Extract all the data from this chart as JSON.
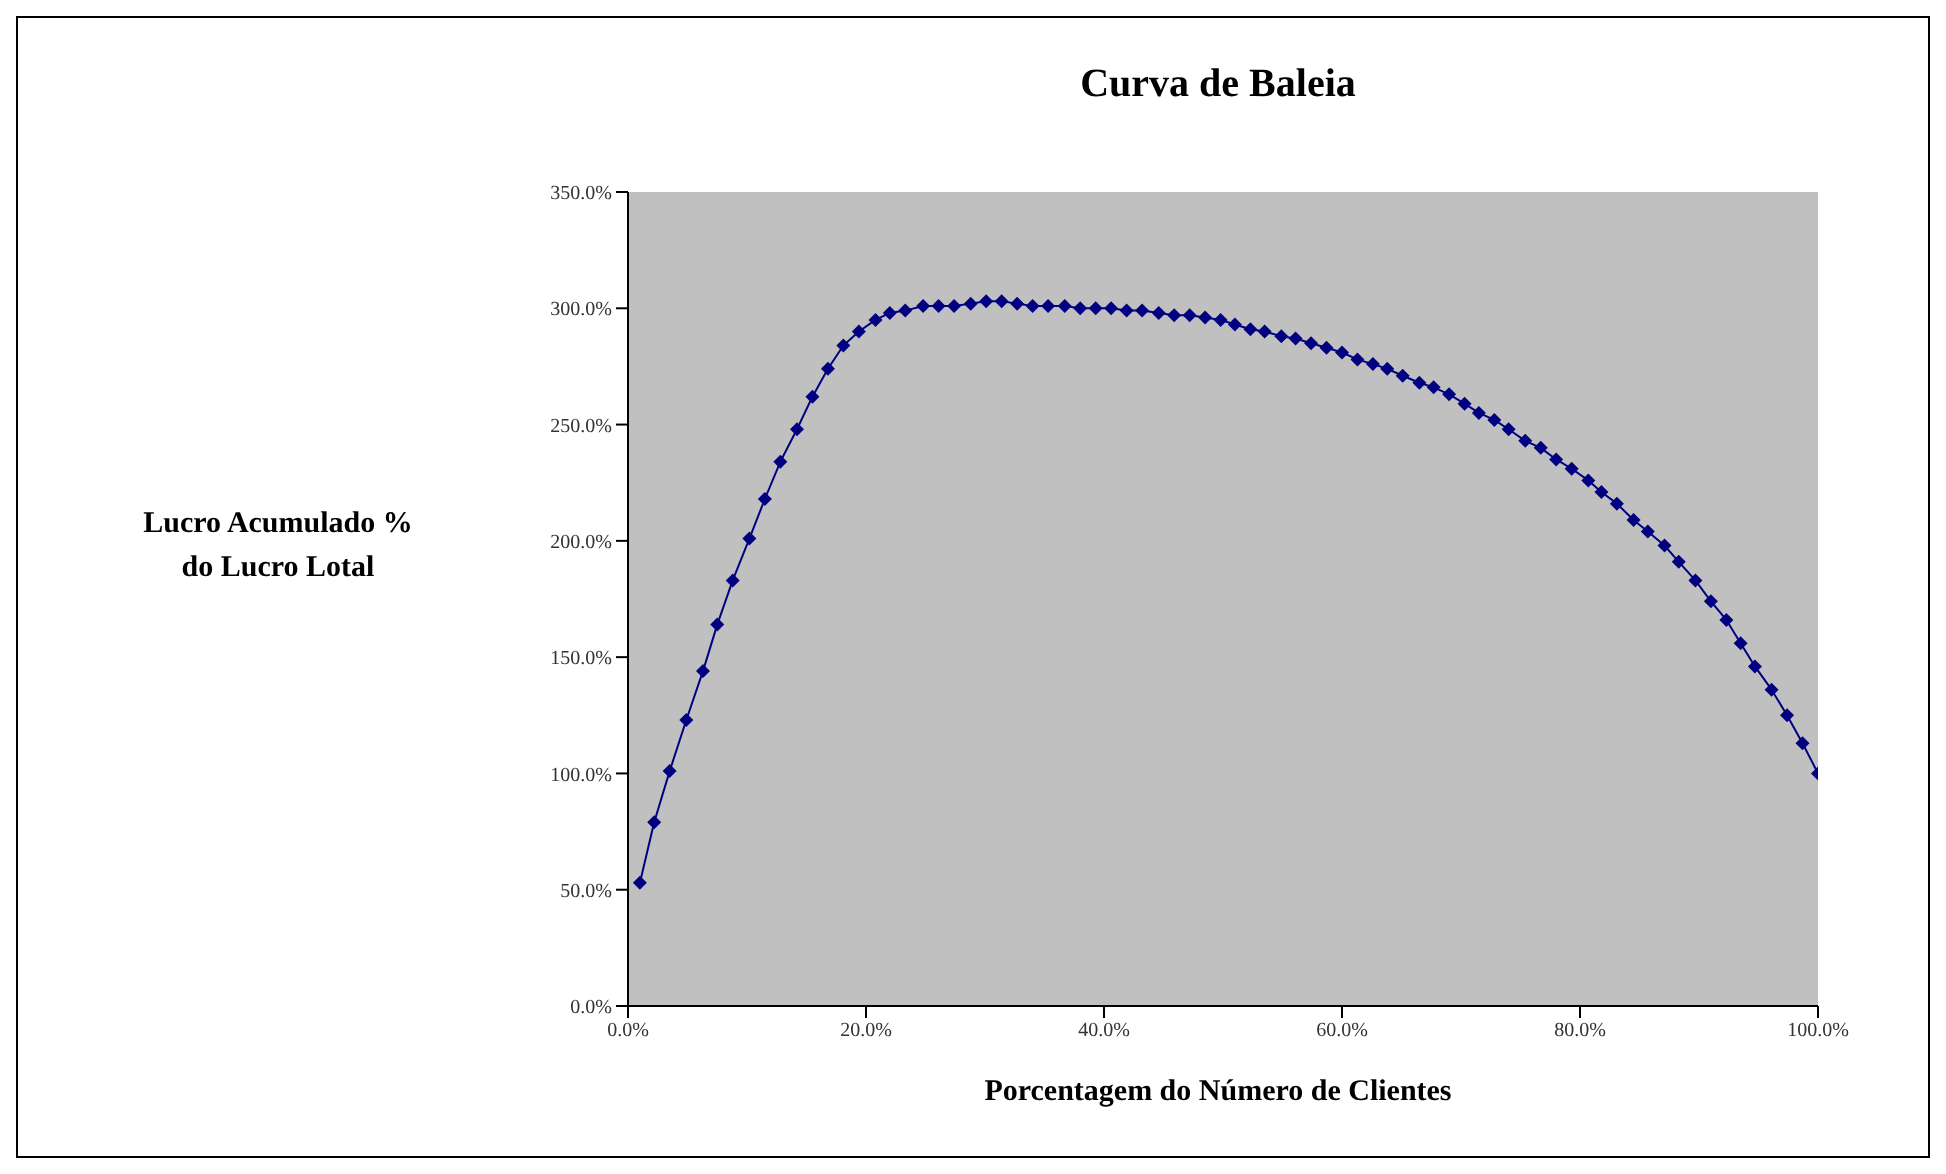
{
  "chart_data": {
    "type": "line",
    "title": "Curva de Baleia",
    "xlabel": "Porcentagem do Número de Clientes",
    "ylabel": "Lucro Acumulado %\ndo Lucro Lotal",
    "x": [
      1.0,
      2.2,
      3.5,
      4.9,
      6.3,
      7.5,
      8.8,
      10.2,
      11.5,
      12.8,
      14.2,
      15.5,
      16.8,
      18.1,
      19.4,
      20.8,
      22.0,
      23.3,
      24.8,
      26.1,
      27.4,
      28.8,
      30.1,
      31.4,
      32.7,
      34.0,
      35.3,
      36.7,
      38.0,
      39.3,
      40.6,
      41.9,
      43.2,
      44.6,
      45.9,
      47.2,
      48.5,
      49.8,
      51.0,
      52.3,
      53.5,
      54.9,
      56.1,
      57.4,
      58.7,
      60.0,
      61.3,
      62.6,
      63.8,
      65.1,
      66.5,
      67.7,
      69.0,
      70.3,
      71.5,
      72.8,
      74.0,
      75.4,
      76.7,
      78.0,
      79.3,
      80.7,
      81.8,
      83.1,
      84.5,
      85.7,
      87.1,
      88.3,
      89.7,
      91.0,
      92.3,
      93.5,
      94.7,
      96.1,
      97.4,
      98.7,
      100.0
    ],
    "series": [
      {
        "color": "#000080",
        "values": [
          53,
          79,
          101,
          123,
          144,
          164,
          183,
          201,
          218,
          234,
          248,
          262,
          274,
          284,
          290,
          295,
          298,
          299,
          301,
          301,
          301,
          302,
          303,
          303,
          302,
          301,
          301,
          301,
          300,
          300,
          300,
          299,
          299,
          298,
          297,
          297,
          296,
          295,
          293,
          291,
          290,
          288,
          287,
          285,
          283,
          281,
          278,
          276,
          274,
          271,
          268,
          266,
          263,
          259,
          255,
          252,
          248,
          243,
          240,
          235,
          231,
          226,
          221,
          216,
          209,
          204,
          198,
          191,
          183,
          174,
          166,
          156,
          146,
          136,
          125,
          113,
          100
        ]
      }
    ],
    "xlim": [
      0,
      100
    ],
    "xticks": [
      {
        "value": 0,
        "label": "0.0%"
      },
      {
        "value": 20,
        "label": "20.0%"
      },
      {
        "value": 40,
        "label": "40.0%"
      },
      {
        "value": 60,
        "label": "60.0%"
      },
      {
        "value": 80,
        "label": "80.0%"
      },
      {
        "value": 100,
        "label": "100.0%"
      }
    ],
    "ylim": [
      0,
      350
    ],
    "yticks": [
      {
        "value": 0,
        "label": "0.0%"
      },
      {
        "value": 50,
        "label": "50.0%"
      },
      {
        "value": 100,
        "label": "100.0%"
      },
      {
        "value": 150,
        "label": "150.0%"
      },
      {
        "value": 200,
        "label": "200.0%"
      },
      {
        "value": 250,
        "label": "250.0%"
      },
      {
        "value": 300,
        "label": "300.0%"
      },
      {
        "value": 350,
        "label": "350.0%"
      }
    ],
    "grid": false,
    "legend": false,
    "marker": "diamond",
    "line_style": "solid"
  }
}
